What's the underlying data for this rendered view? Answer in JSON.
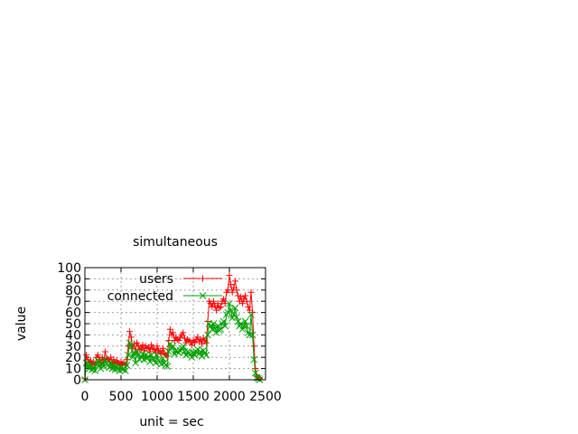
{
  "chart_data": {
    "type": "line",
    "title": "simultaneous",
    "xlabel": "unit = sec",
    "ylabel": "value",
    "xlim": [
      0,
      2500
    ],
    "ylim": [
      0,
      100
    ],
    "xticks": [
      0,
      500,
      1000,
      1500,
      2000,
      2500
    ],
    "yticks": [
      0,
      10,
      20,
      30,
      40,
      50,
      60,
      70,
      80,
      90,
      100
    ],
    "grid": true,
    "legend": "top-right",
    "series": [
      {
        "name": "users",
        "color": "#ff0000",
        "marker": "plus",
        "x": [
          0,
          20,
          40,
          60,
          80,
          100,
          120,
          140,
          160,
          180,
          200,
          220,
          240,
          260,
          280,
          300,
          320,
          340,
          360,
          380,
          400,
          420,
          440,
          460,
          480,
          500,
          520,
          540,
          560,
          580,
          600,
          620,
          640,
          660,
          680,
          700,
          720,
          740,
          760,
          780,
          800,
          820,
          840,
          860,
          880,
          900,
          920,
          940,
          960,
          980,
          1000,
          1020,
          1040,
          1060,
          1080,
          1100,
          1120,
          1140,
          1160,
          1180,
          1200,
          1220,
          1240,
          1260,
          1280,
          1300,
          1320,
          1340,
          1360,
          1380,
          1400,
          1420,
          1440,
          1460,
          1480,
          1500,
          1520,
          1540,
          1560,
          1580,
          1600,
          1620,
          1640,
          1660,
          1680,
          1700,
          1720,
          1740,
          1760,
          1780,
          1800,
          1820,
          1840,
          1860,
          1880,
          1900,
          1920,
          1940,
          1960,
          1980,
          2000,
          2020,
          2040,
          2060,
          2080,
          2100,
          2120,
          2140,
          2160,
          2180,
          2200,
          2220,
          2240,
          2260,
          2280,
          2300,
          2320,
          2340,
          2360,
          2380,
          2400,
          2420
        ],
        "values": [
          1,
          22,
          18,
          15,
          17,
          14,
          16,
          13,
          20,
          22,
          18,
          15,
          20,
          17,
          25,
          19,
          18,
          16,
          20,
          15,
          18,
          14,
          17,
          15,
          13,
          16,
          14,
          15,
          13,
          18,
          30,
          43,
          38,
          28,
          32,
          25,
          33,
          30,
          27,
          28,
          31,
          26,
          30,
          28,
          29,
          25,
          31,
          28,
          27,
          24,
          30,
          26,
          25,
          23,
          28,
          24,
          22,
          21,
          35,
          45,
          40,
          42,
          35,
          38,
          36,
          35,
          38,
          40,
          42,
          37,
          33,
          36,
          35,
          34,
          31,
          35,
          33,
          36,
          38,
          34,
          36,
          32,
          37,
          35,
          33,
          52,
          70,
          68,
          65,
          70,
          66,
          62,
          68,
          64,
          65,
          70,
          72,
          68,
          78,
          80,
          93,
          85,
          78,
          82,
          88,
          80,
          75,
          70,
          74,
          68,
          72,
          75,
          70,
          65,
          62,
          78,
          60,
          30,
          10,
          3,
          2,
          1
        ]
      },
      {
        "name": "connected",
        "color": "#00a000",
        "marker": "cross",
        "x": [
          0,
          20,
          40,
          60,
          80,
          100,
          120,
          140,
          160,
          180,
          200,
          220,
          240,
          260,
          280,
          300,
          320,
          340,
          360,
          380,
          400,
          420,
          440,
          460,
          480,
          500,
          520,
          540,
          560,
          580,
          600,
          620,
          640,
          660,
          680,
          700,
          720,
          740,
          760,
          780,
          800,
          820,
          840,
          860,
          880,
          900,
          920,
          940,
          960,
          980,
          1000,
          1020,
          1040,
          1060,
          1080,
          1100,
          1120,
          1140,
          1160,
          1180,
          1200,
          1220,
          1240,
          1260,
          1280,
          1300,
          1320,
          1340,
          1360,
          1380,
          1400,
          1420,
          1440,
          1460,
          1480,
          1500,
          1520,
          1540,
          1560,
          1580,
          1600,
          1620,
          1640,
          1660,
          1680,
          1700,
          1720,
          1740,
          1760,
          1780,
          1800,
          1820,
          1840,
          1860,
          1880,
          1900,
          1920,
          1940,
          1960,
          1980,
          2000,
          2020,
          2040,
          2060,
          2080,
          2100,
          2120,
          2140,
          2160,
          2180,
          2200,
          2220,
          2240,
          2260,
          2280,
          2300,
          2320,
          2340,
          2360,
          2380,
          2400,
          2420
        ],
        "values": [
          0,
          15,
          12,
          10,
          13,
          9,
          11,
          8,
          14,
          17,
          13,
          10,
          15,
          12,
          18,
          14,
          13,
          11,
          15,
          10,
          13,
          9,
          12,
          10,
          8,
          11,
          9,
          10,
          8,
          13,
          22,
          33,
          30,
          20,
          24,
          15,
          25,
          22,
          18,
          20,
          23,
          18,
          22,
          19,
          21,
          16,
          22,
          19,
          18,
          15,
          22,
          17,
          16,
          14,
          19,
          15,
          13,
          12,
          25,
          32,
          28,
          30,
          23,
          26,
          25,
          24,
          26,
          28,
          30,
          25,
          22,
          25,
          24,
          23,
          20,
          24,
          22,
          25,
          27,
          23,
          25,
          21,
          26,
          24,
          22,
          40,
          50,
          48,
          45,
          50,
          46,
          42,
          48,
          44,
          45,
          50,
          52,
          48,
          58,
          60,
          68,
          62,
          55,
          58,
          64,
          56,
          52,
          48,
          50,
          45,
          48,
          52,
          48,
          42,
          40,
          58,
          40,
          18,
          6,
          2,
          1,
          0
        ]
      }
    ]
  }
}
